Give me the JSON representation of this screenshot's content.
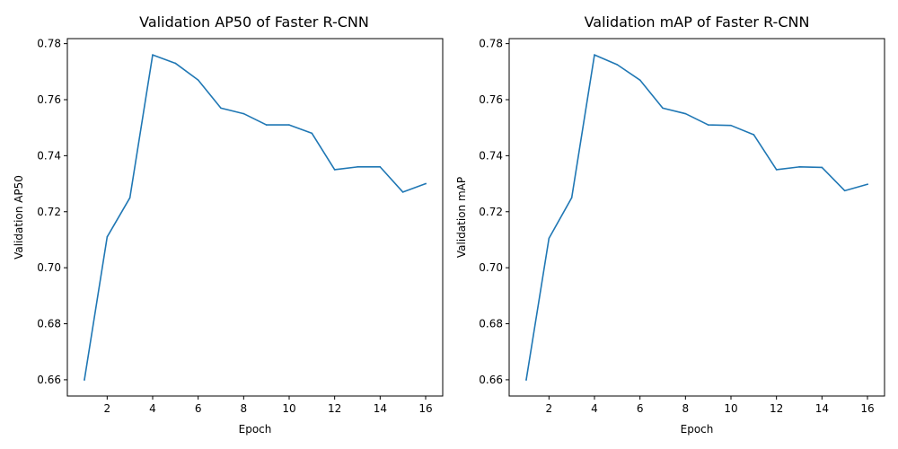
{
  "colors": {
    "series": "#1f77b4",
    "background": "#ffffff",
    "axes": "#000000"
  },
  "chart_data": [
    {
      "type": "line",
      "title": "Validation AP50 of Faster R-CNN",
      "xlabel": "Epoch",
      "ylabel": "Validation AP50",
      "x": [
        1,
        2,
        3,
        4,
        5,
        6,
        7,
        8,
        9,
        10,
        11,
        12,
        13,
        14,
        15,
        16
      ],
      "series": [
        {
          "values": [
            0.66,
            0.711,
            0.725,
            0.776,
            0.773,
            0.767,
            0.757,
            0.755,
            0.751,
            0.751,
            0.748,
            0.735,
            0.736,
            0.736,
            0.727,
            0.73
          ]
        }
      ],
      "xlim": [
        0.25,
        16.75
      ],
      "ylim": [
        0.6542,
        0.7818
      ],
      "xticks": [
        "2",
        "4",
        "6",
        "8",
        "10",
        "12",
        "14",
        "16"
      ],
      "yticks": [
        "0.66",
        "0.68",
        "0.70",
        "0.72",
        "0.74",
        "0.76",
        "0.78"
      ],
      "grid": false,
      "legend": "none"
    },
    {
      "type": "line",
      "title": "Validation mAP of Faster R-CNN",
      "xlabel": "Epoch",
      "ylabel": "Validation mAP",
      "x": [
        1,
        2,
        3,
        4,
        5,
        6,
        7,
        8,
        9,
        10,
        11,
        12,
        13,
        14,
        15,
        16
      ],
      "series": [
        {
          "values": [
            0.66,
            0.7105,
            0.725,
            0.776,
            0.7725,
            0.767,
            0.757,
            0.755,
            0.751,
            0.7508,
            0.7475,
            0.735,
            0.736,
            0.7358,
            0.7275,
            0.7298
          ]
        }
      ],
      "xlim": [
        0.25,
        16.75
      ],
      "ylim": [
        0.6542,
        0.7818
      ],
      "xticks": [
        "2",
        "4",
        "6",
        "8",
        "10",
        "12",
        "14",
        "16"
      ],
      "yticks": [
        "0.66",
        "0.68",
        "0.70",
        "0.72",
        "0.74",
        "0.76",
        "0.78"
      ],
      "grid": false,
      "legend": "none"
    }
  ]
}
